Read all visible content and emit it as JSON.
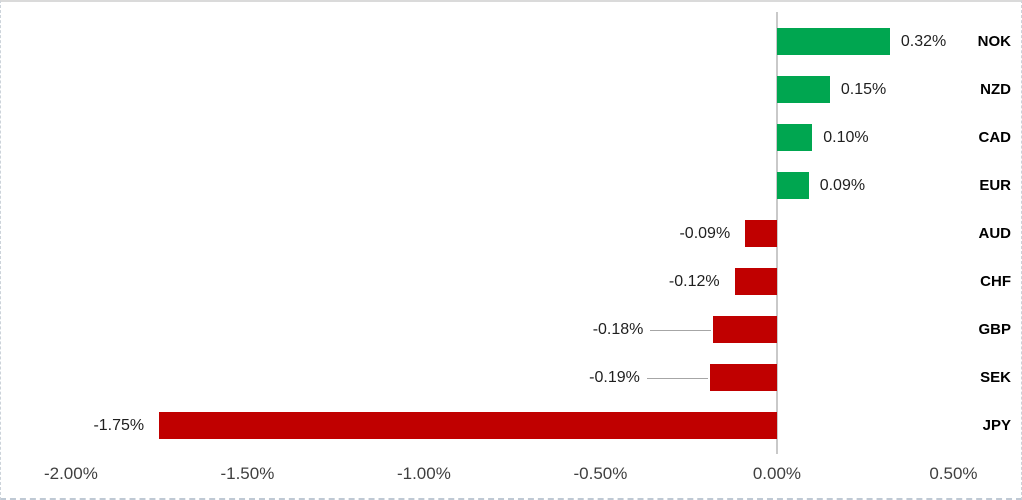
{
  "chart_data": {
    "type": "bar",
    "orientation": "horizontal",
    "title": "",
    "xlabel": "",
    "ylabel": "",
    "legend": "none",
    "grid": "off",
    "categories": [
      "NOK",
      "NZD",
      "CAD",
      "EUR",
      "AUD",
      "CHF",
      "GBP",
      "SEK",
      "JPY"
    ],
    "values": [
      0.32,
      0.15,
      0.1,
      0.09,
      -0.09,
      -0.12,
      -0.18,
      -0.19,
      -1.75
    ],
    "value_labels": [
      "0.32%",
      "0.15%",
      "0.10%",
      "0.09%",
      "-0.09%",
      "-0.12%",
      "-0.18%",
      "-0.19%",
      "-1.75%"
    ],
    "x_tick_labels": [
      "-2.00%",
      "-1.50%",
      "-1.00%",
      "-0.50%",
      "0.00%",
      "0.50%"
    ],
    "x_tick_values": [
      -2.0,
      -1.5,
      -1.0,
      -0.5,
      0.0,
      0.5
    ],
    "xlim": [
      -2.198,
      0.697
    ],
    "labels_with_leader_lines": [
      "GBP",
      "SEK"
    ],
    "colors": {
      "positive_bar": "#00A650",
      "negative_bar": "#C00000",
      "zero_axis_line": "#C9C9C9",
      "leader_line": "#A6A6A6",
      "value_label_text": "#1F1F1F",
      "category_label_text": "#000000",
      "tick_label_text": "#3F3F3F"
    }
  }
}
